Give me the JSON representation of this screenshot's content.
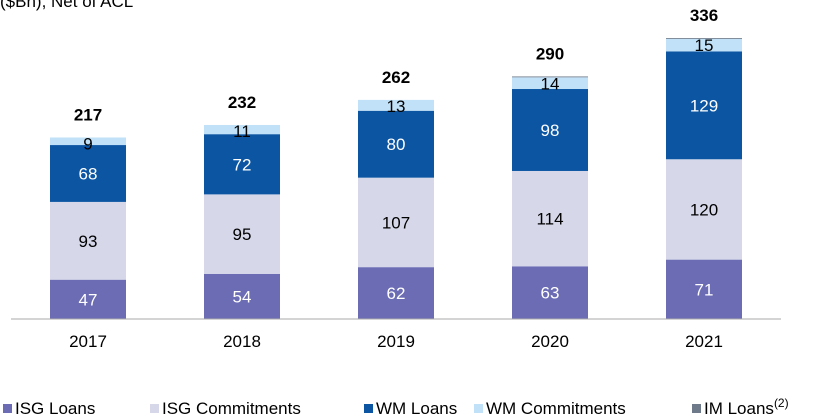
{
  "chart_data": {
    "type": "stacked_bar",
    "title": "($Bn), Net of ACL",
    "categories": [
      "2017",
      "2018",
      "2019",
      "2020",
      "2021"
    ],
    "series": [
      {
        "name": "ISG Loans",
        "color": "#6b6cb4",
        "values": [
          47,
          54,
          62,
          63,
          71
        ]
      },
      {
        "name": "ISG Commitments",
        "color": "#d6d8ea",
        "values": [
          93,
          95,
          107,
          114,
          120
        ]
      },
      {
        "name": "WM Loans",
        "color": "#0b55a3",
        "values": [
          68,
          72,
          80,
          98,
          129
        ]
      },
      {
        "name": "WM Commitments",
        "color": "#c0e1f7",
        "values": [
          9,
          11,
          13,
          14,
          15
        ]
      },
      {
        "name": "IM Loans",
        "color": "#6e7a89",
        "values": [
          0,
          0,
          0,
          1,
          1
        ]
      }
    ],
    "legend_note": "(2)",
    "totals": [
      217,
      232,
      262,
      290,
      336
    ],
    "ylim": [
      0,
      336
    ]
  }
}
